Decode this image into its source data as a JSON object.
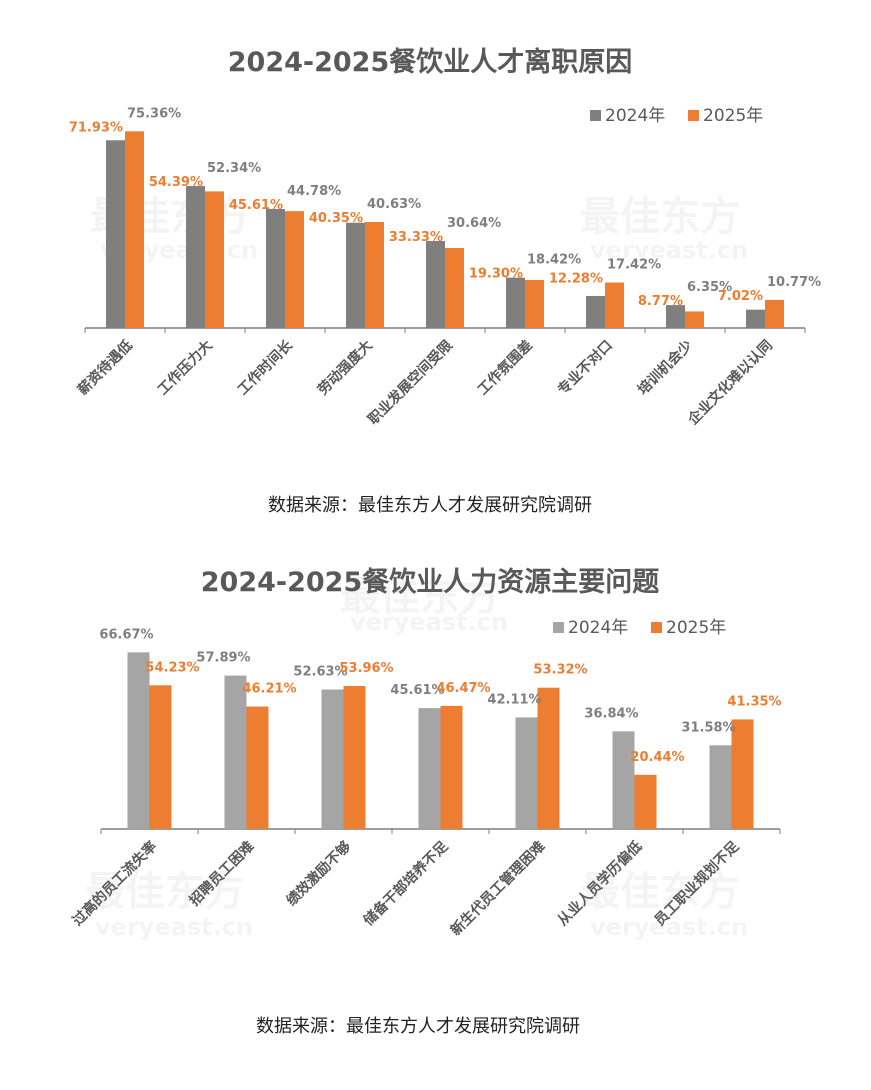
{
  "colors": {
    "s2024_chart1": "#7f7f7f",
    "s2024_chart2": "#a5a5a5",
    "s2025": "#ed7d31",
    "title": "#595959"
  },
  "watermark": {
    "cn": "最佳东方",
    "en": "veryeast.cn"
  },
  "chart_data": [
    {
      "type": "bar",
      "title": "2024-2025餐饮业人才离职原因",
      "source": "数据来源：最佳东方人才发展研究院调研",
      "legend_position": "top-right",
      "grid": false,
      "ylim": [
        0,
        80
      ],
      "categories": [
        "薪资待遇低",
        "工作压力大",
        "工作时间长",
        "劳动强度大",
        "职业发展空间受限",
        "工作氛围差",
        "专业不对口",
        "培训机会少",
        "企业文化难以认同"
      ],
      "series": [
        {
          "name": "2024年",
          "values": [
            71.93,
            54.39,
            45.61,
            40.35,
            33.33,
            19.3,
            12.28,
            8.77,
            7.02
          ],
          "labels": [
            "71.93%",
            "54.39%",
            "45.61%",
            "40.35%",
            "33.33%",
            "19.30%",
            "12.28%",
            "8.77%",
            "7.02%"
          ]
        },
        {
          "name": "2025年",
          "values": [
            75.36,
            52.34,
            44.78,
            40.63,
            30.64,
            18.42,
            17.42,
            6.35,
            10.77
          ],
          "labels": [
            "75.36%",
            "52.34%",
            "44.78%",
            "40.63%",
            "30.64%",
            "18.42%",
            "17.42%",
            "6.35%",
            "10.77%"
          ]
        }
      ]
    },
    {
      "type": "bar",
      "title": "2024-2025餐饮业人力资源主要问题",
      "source": "数据来源：最佳东方人才发展研究院调研",
      "legend_position": "top-right",
      "grid": false,
      "ylim": [
        0,
        70
      ],
      "categories": [
        "过高的员工流失率",
        "招聘员工困难",
        "绩效激励不够",
        "储备干部培养不足",
        "新生代员工管理困难",
        "从业人员学历偏低",
        "员工职业规划不足"
      ],
      "series": [
        {
          "name": "2024年",
          "values": [
            66.67,
            57.89,
            52.63,
            45.61,
            42.11,
            36.84,
            31.58
          ],
          "labels": [
            "66.67%",
            "57.89%",
            "52.63%",
            "45.61%",
            "42.11%",
            "36.84%",
            "31.58%"
          ]
        },
        {
          "name": "2025年",
          "values": [
            54.23,
            46.21,
            53.96,
            46.47,
            53.32,
            20.44,
            41.35
          ],
          "labels": [
            "54.23%",
            "46.21%",
            "53.96%",
            "46.47%",
            "53.32%",
            "20.44%",
            "41.35%"
          ]
        }
      ]
    }
  ]
}
